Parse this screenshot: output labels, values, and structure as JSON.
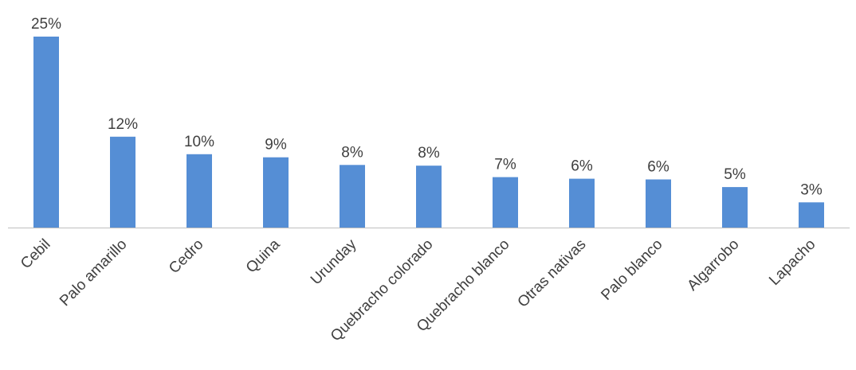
{
  "chart_data": {
    "type": "bar",
    "title": "",
    "xlabel": "",
    "ylabel": "",
    "categories": [
      "Cebil",
      "Palo amarillo",
      "Cedro",
      "Quina",
      "Urunday",
      "Quebracho colorado",
      "Quebracho blanco",
      "Otras nativas",
      "Palo blanco",
      "Algarrobo",
      "Lapacho"
    ],
    "values": [
      25.0,
      11.9,
      9.6,
      9.2,
      8.2,
      8.1,
      6.6,
      6.4,
      6.3,
      5.3,
      3.3
    ],
    "data_labels": [
      "25%",
      "12%",
      "10%",
      "9%",
      "8%",
      "8%",
      "7%",
      "6%",
      "6%",
      "5%",
      "3%"
    ],
    "ylim": [
      0,
      25
    ],
    "grid": false,
    "legend": "none",
    "bar_color": "#558ED5",
    "axis_color": "#BFBFBF",
    "label_color": "#404040"
  }
}
